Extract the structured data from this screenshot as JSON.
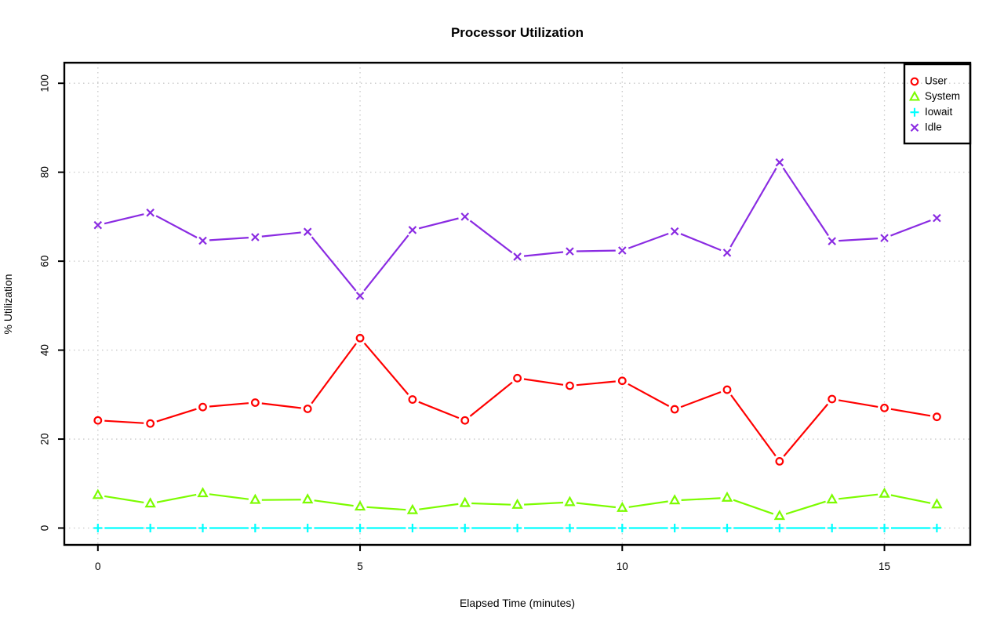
{
  "title": "Processor Utilization",
  "chart_data": {
    "type": "line",
    "title": "Processor Utilization",
    "xlabel": "Elapsed Time (minutes)",
    "ylabel": "% Utilization",
    "xlim": [
      0,
      16
    ],
    "ylim": [
      0,
      100
    ],
    "x_ticks": [
      0,
      5,
      10,
      15
    ],
    "y_ticks": [
      0,
      20,
      40,
      60,
      80,
      100
    ],
    "grid": true,
    "legend_position": "top-right",
    "x": [
      0,
      1,
      2,
      3,
      4,
      5,
      6,
      7,
      8,
      9,
      10,
      11,
      12,
      13,
      14,
      15,
      16
    ],
    "series": [
      {
        "name": "User",
        "marker": "circle",
        "color": "#ff0000",
        "values": [
          24.2,
          23.5,
          27.2,
          28.2,
          26.8,
          42.7,
          28.9,
          24.2,
          33.7,
          32.0,
          33.1,
          26.7,
          31.1,
          15.0,
          29.0,
          27.0,
          25.0
        ]
      },
      {
        "name": "System",
        "marker": "triangle",
        "color": "#7cfc00",
        "values": [
          7.4,
          5.5,
          7.8,
          6.3,
          6.4,
          4.8,
          4.0,
          5.6,
          5.2,
          5.8,
          4.5,
          6.2,
          6.8,
          2.7,
          6.4,
          7.7,
          5.3
        ]
      },
      {
        "name": "Iowait",
        "marker": "plus",
        "color": "#00ffff",
        "values": [
          0,
          0,
          0,
          0,
          0,
          0,
          0,
          0,
          0,
          0,
          0,
          0,
          0,
          0,
          0,
          0,
          0
        ]
      },
      {
        "name": "Idle",
        "marker": "x",
        "color": "#8a2be2",
        "values": [
          68.1,
          70.9,
          64.6,
          65.4,
          66.6,
          52.2,
          67.0,
          70.0,
          61.0,
          62.2,
          62.4,
          66.7,
          61.9,
          82.2,
          64.5,
          65.2,
          69.7
        ]
      }
    ],
    "colors": {
      "grid": "#c9c9c9",
      "axis": "#000000",
      "user": "#ff0000",
      "system": "#7cfc00",
      "iowait": "#00ffff",
      "idle": "#8a2be2"
    }
  }
}
